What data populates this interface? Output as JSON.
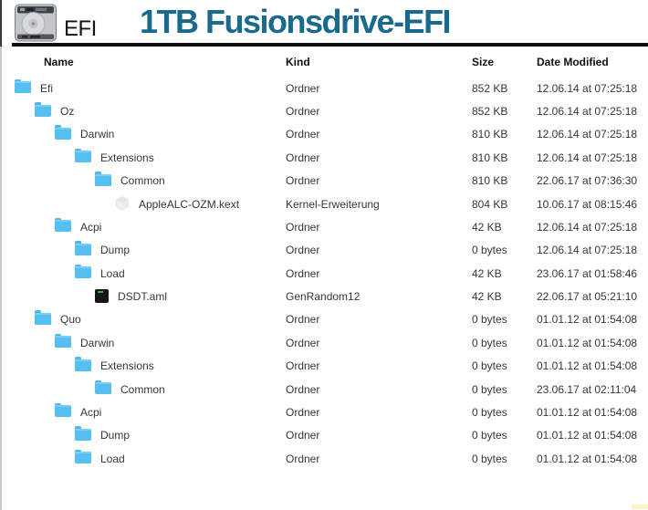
{
  "header": {
    "volume_label": "EFI",
    "title": "1TB Fusionsdrive-EFI",
    "drive_icon": "hard-drive-icon"
  },
  "table": {
    "columns": [
      "Name",
      "Kind",
      "Size",
      "Date Modified"
    ],
    "rows": [
      {
        "name": "Efi",
        "icon": "folder-icon",
        "level": 0,
        "kind": "Ordner",
        "size": "852 KB",
        "modified": "12.06.14 at 07:25:18"
      },
      {
        "name": "Oz",
        "icon": "folder-icon",
        "level": 1,
        "kind": "Ordner",
        "size": "852 KB",
        "modified": "12.06.14 at 07:25:18"
      },
      {
        "name": "Darwin",
        "icon": "folder-icon",
        "level": 2,
        "kind": "Ordner",
        "size": "810 KB",
        "modified": "12.06.14 at 07:25:18"
      },
      {
        "name": "Extensions",
        "icon": "folder-icon",
        "level": 3,
        "kind": "Ordner",
        "size": "810 KB",
        "modified": "12.06.14 at 07:25:18"
      },
      {
        "name": "Common",
        "icon": "folder-icon",
        "level": 4,
        "kind": "Ordner",
        "size": "810 KB",
        "modified": "22.06.17 at 07:36:30"
      },
      {
        "name": "AppleALC-OZM.kext",
        "icon": "kext-icon",
        "level": 5,
        "kind": "Kernel-Erweiterung",
        "size": "804 KB",
        "modified": "10.06.17 at 08:15:46"
      },
      {
        "name": "Acpi",
        "icon": "folder-icon",
        "level": 2,
        "kind": "Ordner",
        "size": "42 KB",
        "modified": "12.06.14 at 07:25:18"
      },
      {
        "name": "Dump",
        "icon": "folder-icon",
        "level": 3,
        "kind": "Ordner",
        "size": "0 bytes",
        "modified": "12.06.14 at 07:25:18"
      },
      {
        "name": "Load",
        "icon": "folder-icon",
        "level": 3,
        "kind": "Ordner",
        "size": "42 KB",
        "modified": "23.06.17 at 01:58:46"
      },
      {
        "name": "DSDT.aml",
        "icon": "aml-file-icon",
        "level": 4,
        "kind": "GenRandom12",
        "size": "42 KB",
        "modified": "22.06.17 at 05:21:10"
      },
      {
        "name": "Quo",
        "icon": "folder-icon",
        "level": 1,
        "kind": "Ordner",
        "size": "0 bytes",
        "modified": "01.01.12 at 01:54:08"
      },
      {
        "name": "Darwin",
        "icon": "folder-icon",
        "level": 2,
        "kind": "Ordner",
        "size": "0 bytes",
        "modified": "01.01.12 at 01:54:08"
      },
      {
        "name": "Extensions",
        "icon": "folder-icon",
        "level": 3,
        "kind": "Ordner",
        "size": "0 bytes",
        "modified": "01.01.12 at 01:54:08"
      },
      {
        "name": "Common",
        "icon": "folder-icon",
        "level": 4,
        "kind": "Ordner",
        "size": "0 bytes",
        "modified": "23.06.17 at 02:11:04"
      },
      {
        "name": "Acpi",
        "icon": "folder-icon",
        "level": 2,
        "kind": "Ordner",
        "size": "0 bytes",
        "modified": "01.01.12 at 01:54:08"
      },
      {
        "name": "Dump",
        "icon": "folder-icon",
        "level": 3,
        "kind": "Ordner",
        "size": "0 bytes",
        "modified": "01.01.12 at 01:54:08"
      },
      {
        "name": "Load",
        "icon": "folder-icon",
        "level": 3,
        "kind": "Ordner",
        "size": "0 bytes",
        "modified": "01.01.12 at 01:54:08"
      }
    ]
  },
  "colors": {
    "title_accent": "#1a6a8f",
    "folder_blue": "#55bff0",
    "rule_black": "#0e0e0e",
    "left_line_gray": "#c8c8c8",
    "highlight_yellow": "#f9f5c1",
    "aml_green": "#2fae4e"
  }
}
